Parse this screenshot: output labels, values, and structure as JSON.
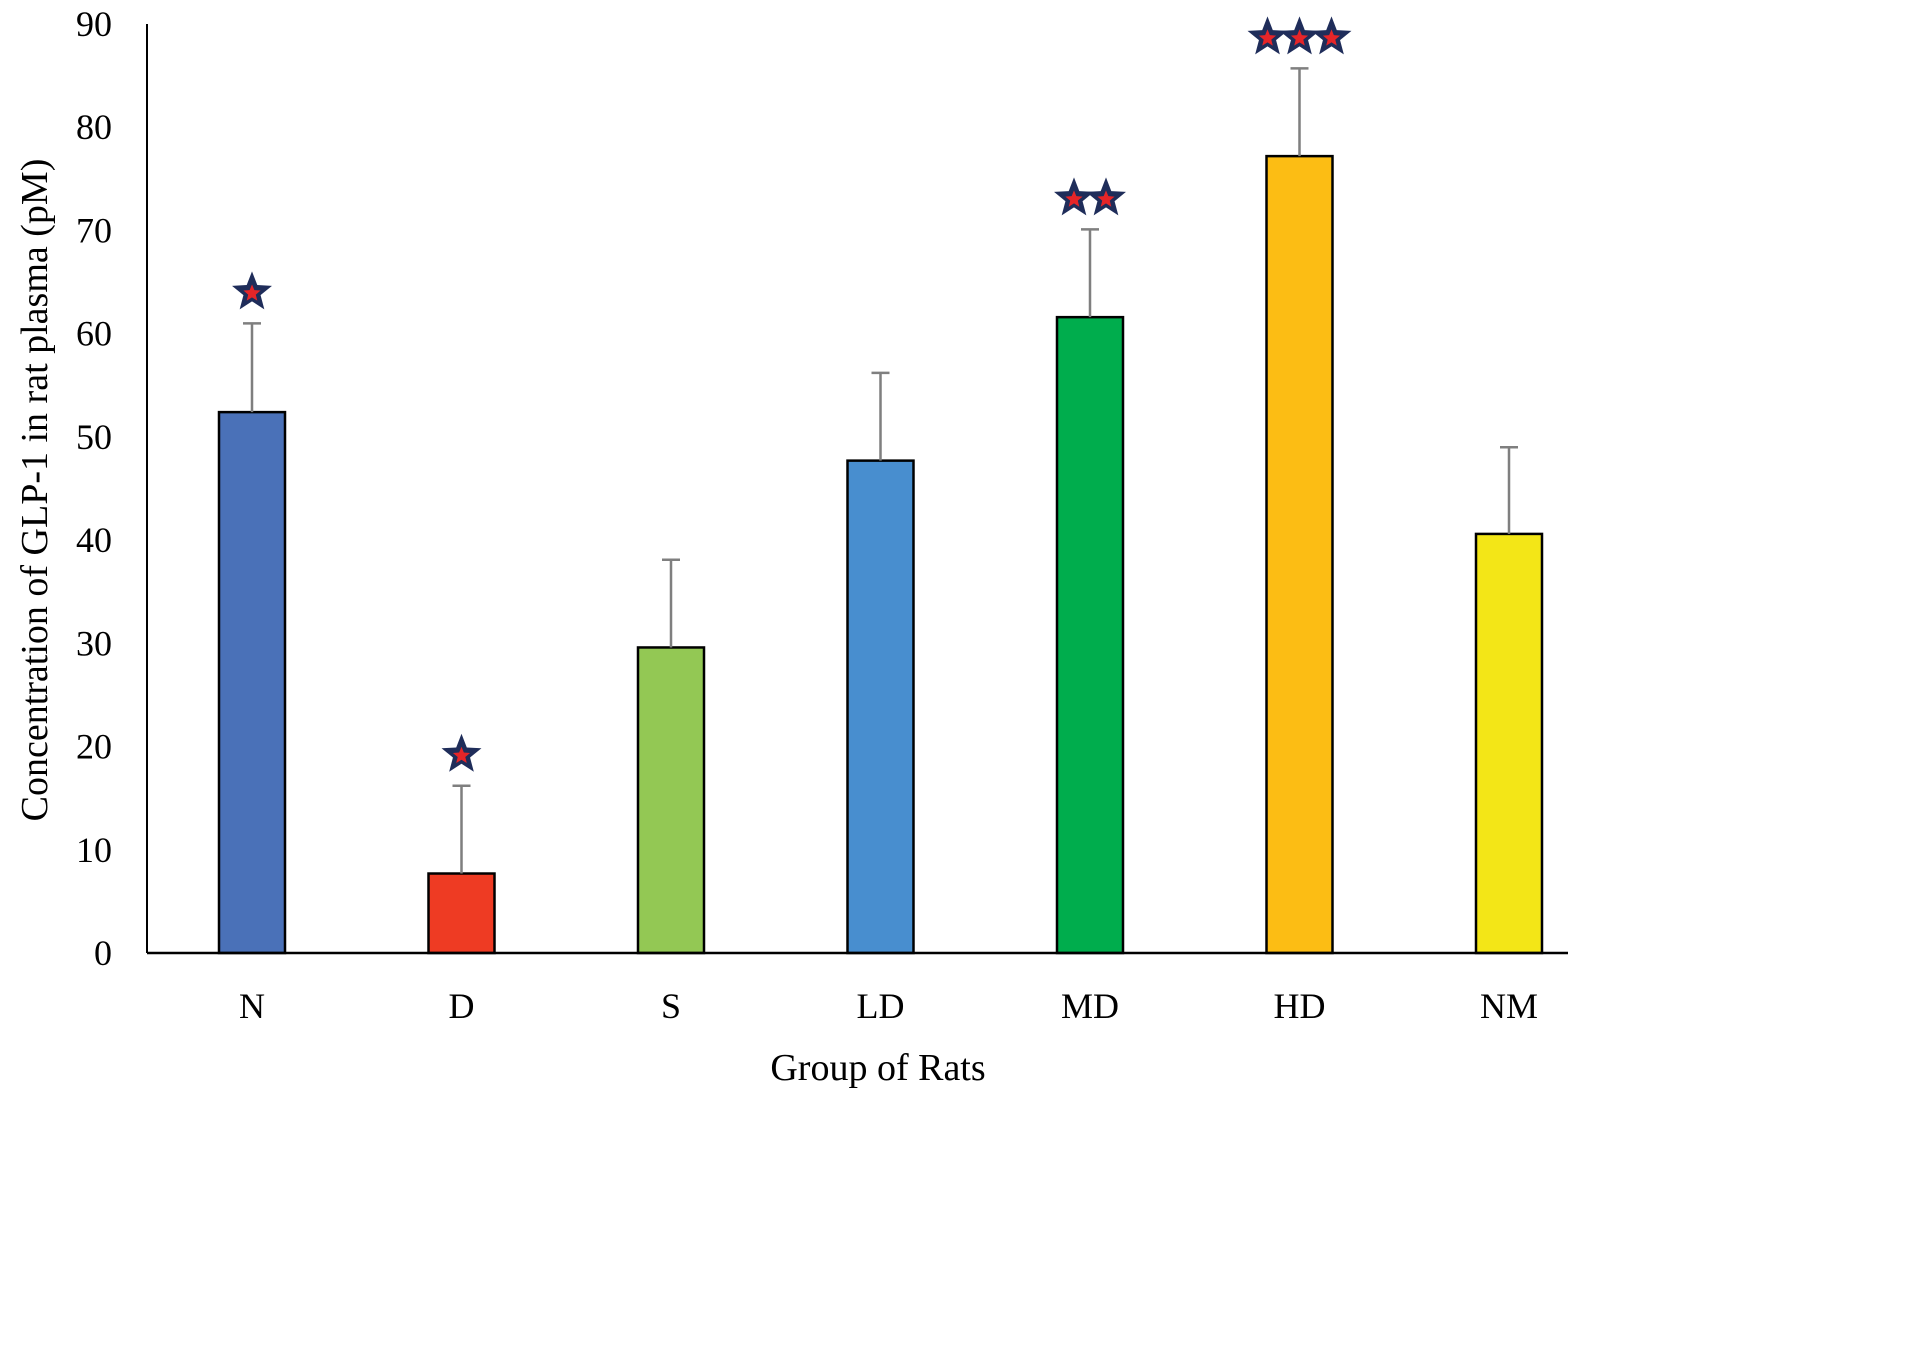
{
  "chart_data": {
    "type": "bar",
    "title": "",
    "xlabel": "Group of Rats",
    "ylabel": "Concentration of GLP-1 in rat plasma (pM)",
    "ylim": [
      0,
      90
    ],
    "yticks": [
      0,
      10,
      20,
      30,
      40,
      50,
      60,
      70,
      80,
      90
    ],
    "ytick_labels": [
      "0",
      "10",
      "20",
      "30",
      "40",
      "50",
      "60",
      "70",
      "80",
      "90"
    ],
    "grid": false,
    "categories": [
      "N",
      "D",
      "S",
      "LD",
      "MD",
      "HD",
      "NM"
    ],
    "values": [
      52.4,
      7.7,
      29.6,
      47.7,
      61.6,
      77.2,
      40.6
    ],
    "errors": [
      8.6,
      8.5,
      8.5,
      8.5,
      8.5,
      8.5,
      8.4
    ],
    "colors": [
      "#4a71b8",
      "#ee3b23",
      "#93c854",
      "#488ecf",
      "#00ad4d",
      "#fcbd14",
      "#f3e617"
    ],
    "significance_stars": [
      1,
      1,
      0,
      0,
      2,
      3,
      0
    ]
  },
  "colors": {
    "star_fill": "#e62528",
    "star_stroke": "#1f2d5a",
    "error_bar": "#7f7f7f",
    "axis": "#000000"
  }
}
